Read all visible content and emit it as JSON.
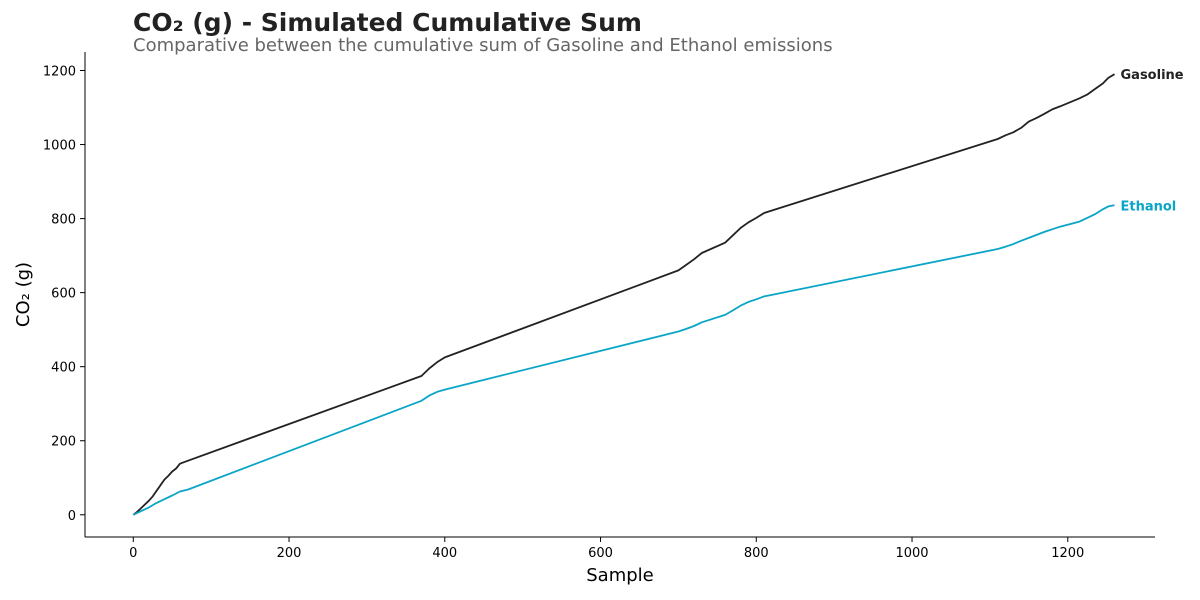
{
  "chart_data": {
    "type": "line",
    "title": "CO₂ (g) - Simulated Cumulative Sum",
    "subtitle": "Comparative between the cumulative sum of Gasoline and Ethanol emissions",
    "xlabel": "Sample",
    "ylabel": "CO₂ (g)",
    "xlim": [
      -62,
      1312
    ],
    "ylim": [
      -60,
      1250
    ],
    "xticks": [
      0,
      200,
      400,
      600,
      800,
      1000,
      1200
    ],
    "yticks": [
      0,
      200,
      400,
      600,
      800,
      1000,
      1200
    ],
    "grid": false,
    "legend": "end-of-line labels",
    "series": [
      {
        "name": "Gasoline",
        "color": "#222222",
        "points": [
          [
            0,
            0
          ],
          [
            5,
            8
          ],
          [
            10,
            18
          ],
          [
            15,
            28
          ],
          [
            20,
            38
          ],
          [
            25,
            50
          ],
          [
            30,
            65
          ],
          [
            35,
            80
          ],
          [
            40,
            95
          ],
          [
            45,
            105
          ],
          [
            50,
            117
          ],
          [
            55,
            125
          ],
          [
            60,
            138
          ],
          [
            65,
            142
          ],
          [
            370,
            375
          ],
          [
            380,
            395
          ],
          [
            390,
            412
          ],
          [
            400,
            425
          ],
          [
            700,
            660
          ],
          [
            710,
            675
          ],
          [
            720,
            690
          ],
          [
            730,
            707
          ],
          [
            760,
            735
          ],
          [
            770,
            755
          ],
          [
            780,
            775
          ],
          [
            790,
            790
          ],
          [
            800,
            802
          ],
          [
            810,
            815
          ],
          [
            820,
            822
          ],
          [
            1110,
            1015
          ],
          [
            1120,
            1025
          ],
          [
            1130,
            1033
          ],
          [
            1140,
            1045
          ],
          [
            1150,
            1062
          ],
          [
            1160,
            1072
          ],
          [
            1170,
            1083
          ],
          [
            1180,
            1095
          ],
          [
            1190,
            1103
          ],
          [
            1215,
            1125
          ],
          [
            1225,
            1135
          ],
          [
            1235,
            1150
          ],
          [
            1245,
            1165
          ],
          [
            1252,
            1180
          ],
          [
            1260,
            1190
          ]
        ]
      },
      {
        "name": "Ethanol",
        "color": "#0aa5c6",
        "points": [
          [
            0,
            0
          ],
          [
            10,
            10
          ],
          [
            20,
            20
          ],
          [
            30,
            32
          ],
          [
            40,
            42
          ],
          [
            50,
            52
          ],
          [
            60,
            63
          ],
          [
            70,
            68
          ],
          [
            370,
            308
          ],
          [
            380,
            322
          ],
          [
            390,
            332
          ],
          [
            400,
            338
          ],
          [
            700,
            495
          ],
          [
            710,
            502
          ],
          [
            720,
            510
          ],
          [
            730,
            520
          ],
          [
            760,
            540
          ],
          [
            770,
            552
          ],
          [
            780,
            565
          ],
          [
            790,
            575
          ],
          [
            800,
            582
          ],
          [
            810,
            590
          ],
          [
            820,
            594
          ],
          [
            1110,
            718
          ],
          [
            1120,
            724
          ],
          [
            1130,
            731
          ],
          [
            1140,
            740
          ],
          [
            1150,
            748
          ],
          [
            1160,
            756
          ],
          [
            1170,
            764
          ],
          [
            1180,
            771
          ],
          [
            1190,
            778
          ],
          [
            1215,
            792
          ],
          [
            1225,
            802
          ],
          [
            1235,
            812
          ],
          [
            1245,
            825
          ],
          [
            1252,
            833
          ],
          [
            1260,
            836
          ]
        ]
      }
    ]
  }
}
